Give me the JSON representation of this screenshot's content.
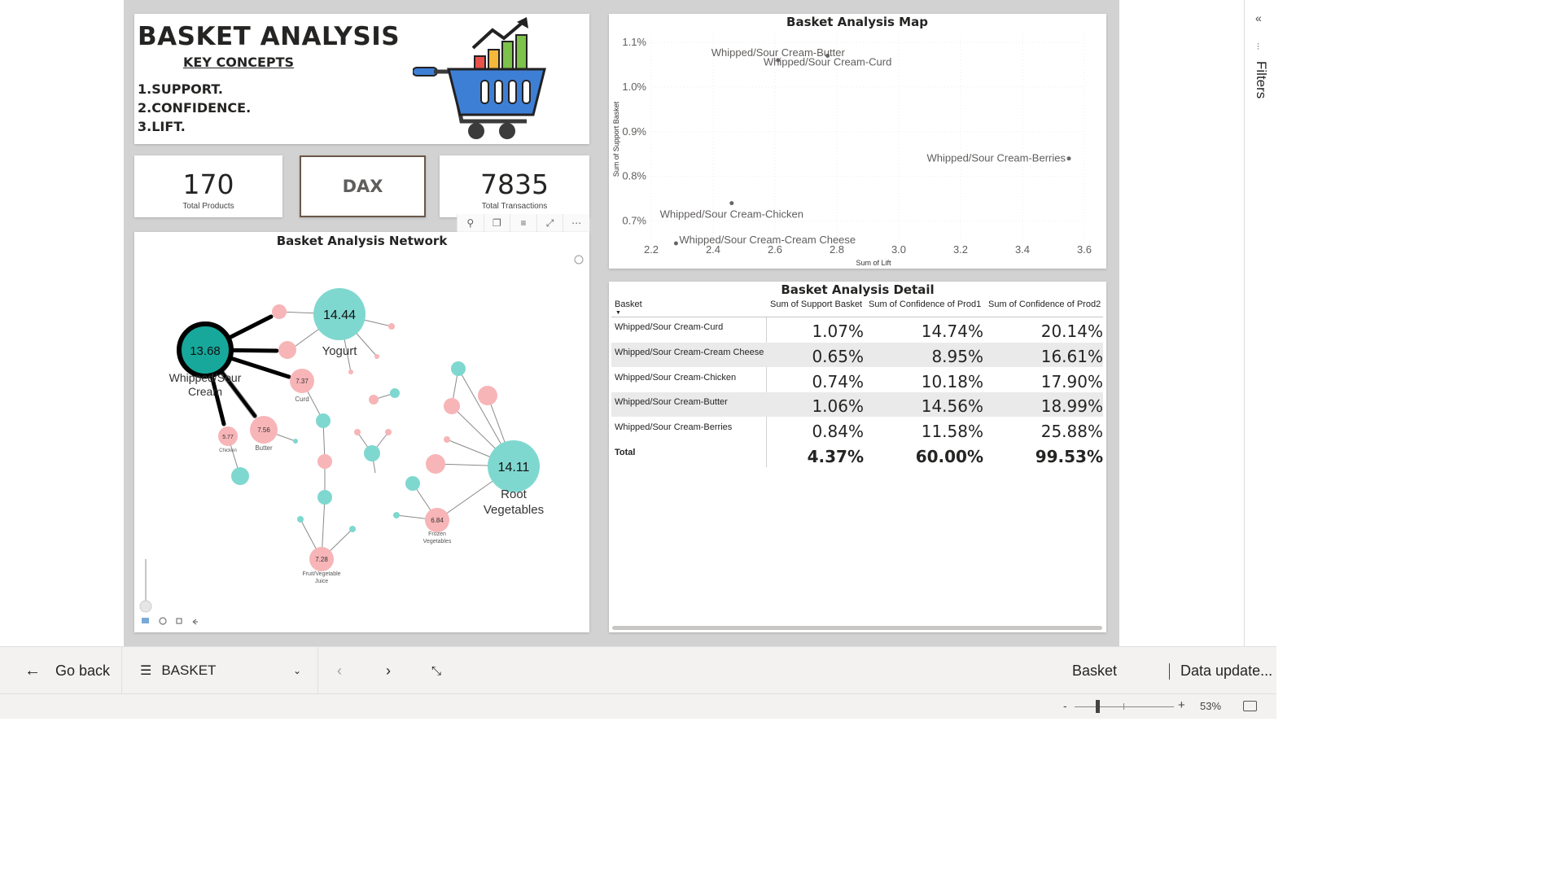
{
  "title_card": {
    "title": "BASKET ANALYSIS",
    "key_concepts": "KEY CONCEPTS",
    "concepts": [
      "1.SUPPORT.",
      "2.CONFIDENCE.",
      "3.LIFT."
    ]
  },
  "kpis": {
    "total_products": {
      "value": "170",
      "label": "Total Products"
    },
    "dax": "DAX",
    "total_transactions": {
      "value": "7835",
      "label": "Total Transactions"
    }
  },
  "visual_header": {
    "icons": [
      "pin-icon",
      "copy-icon",
      "filter-icon",
      "focus-icon",
      "more-icon"
    ],
    "glyphs": [
      "⚲",
      "❐",
      "≡",
      "⤢",
      "⋯"
    ]
  },
  "network": {
    "title": "Basket Analysis Network",
    "nodes": [
      {
        "name": "Whipped/Sour\nCream",
        "label1": "Whipped/Sour",
        "label2": "Cream",
        "value": "13.68"
      },
      {
        "name": "Yogurt",
        "value": "14.44"
      },
      {
        "name": "Root Vegetables",
        "label1": "Root",
        "label2": "Vegetables",
        "value": "14.11"
      },
      {
        "name": "Curd",
        "value": "7.37"
      },
      {
        "name": "Butter",
        "value": "7.56"
      },
      {
        "name": "Chicken",
        "value": "5.77"
      },
      {
        "name": "Fruit/Vegetable Juice",
        "label1": "Fruit/Vegetable",
        "label2": "Juice",
        "value": "7.28"
      },
      {
        "name": "Frozen Vegetables",
        "label1": "Frozen",
        "label2": "Vegetables",
        "value": "6.84"
      }
    ]
  },
  "scatter": {
    "title": "Basket Analysis Map",
    "xlabel": "Sum of Lift",
    "ylabel": "Sum of Support Basket"
  },
  "chart_data": {
    "type": "scatter",
    "title": "Basket Analysis Map",
    "xlabel": "Sum of Lift",
    "ylabel": "Sum of Support Basket",
    "xlim": [
      2.2,
      3.6
    ],
    "ylim": [
      0.65,
      1.12
    ],
    "xticks": [
      "2.2",
      "2.4",
      "2.6",
      "2.8",
      "3.0",
      "3.2",
      "3.4",
      "3.6"
    ],
    "yticks": [
      {
        "v": 0.7,
        "label": "0.7%"
      },
      {
        "v": 0.8,
        "label": "0.8%"
      },
      {
        "v": 0.9,
        "label": "0.9%"
      },
      {
        "v": 1.0,
        "label": "1.0%"
      },
      {
        "v": 1.1,
        "label": "1.1%"
      }
    ],
    "points": [
      {
        "label": "Whipped/Sour Cream-Butter",
        "x": 2.61,
        "y": 1.06
      },
      {
        "label": "Whipped/Sour Cream-Curd",
        "x": 2.77,
        "y": 1.07
      },
      {
        "label": "Whipped/Sour Cream-Berries",
        "x": 3.55,
        "y": 0.84
      },
      {
        "label": "Whipped/Sour Cream-Chicken",
        "x": 2.46,
        "y": 0.74
      },
      {
        "label": "Whipped/Sour Cream-Cream Cheese",
        "x": 2.28,
        "y": 0.65
      }
    ]
  },
  "table": {
    "title": "Basket Analysis Detail",
    "headers": [
      "Basket",
      "Sum of Support Basket",
      "Sum of Confidence of Prod1",
      "Sum of Confidence of Prod2"
    ],
    "rows": [
      {
        "basket": "Whipped/Sour Cream-Curd",
        "support": "1.07%",
        "conf1": "14.74%",
        "conf2": "20.14%"
      },
      {
        "basket": "Whipped/Sour Cream-Cream Cheese",
        "support": "0.65%",
        "conf1": "8.95%",
        "conf2": "16.61%"
      },
      {
        "basket": "Whipped/Sour Cream-Chicken",
        "support": "0.74%",
        "conf1": "10.18%",
        "conf2": "17.90%"
      },
      {
        "basket": "Whipped/Sour Cream-Butter",
        "support": "1.06%",
        "conf1": "14.56%",
        "conf2": "18.99%"
      },
      {
        "basket": "Whipped/Sour Cream-Berries",
        "support": "0.84%",
        "conf1": "11.58%",
        "conf2": "25.88%"
      }
    ],
    "total": {
      "basket": "Total",
      "support": "4.37%",
      "conf1": "60.00%",
      "conf2": "99.53%"
    }
  },
  "right_pane": {
    "label": "Filters"
  },
  "bottom_bar": {
    "go_back": "Go back",
    "page": "BASKET",
    "breadcrumb": "Basket",
    "data_update": "Data update..."
  },
  "status_bar": {
    "zoom": "53%"
  },
  "colors": {
    "teal": "#7fd8d0",
    "teal_dark": "#17a89b",
    "pink": "#f7b5b8",
    "border_brown": "#6b5748"
  }
}
